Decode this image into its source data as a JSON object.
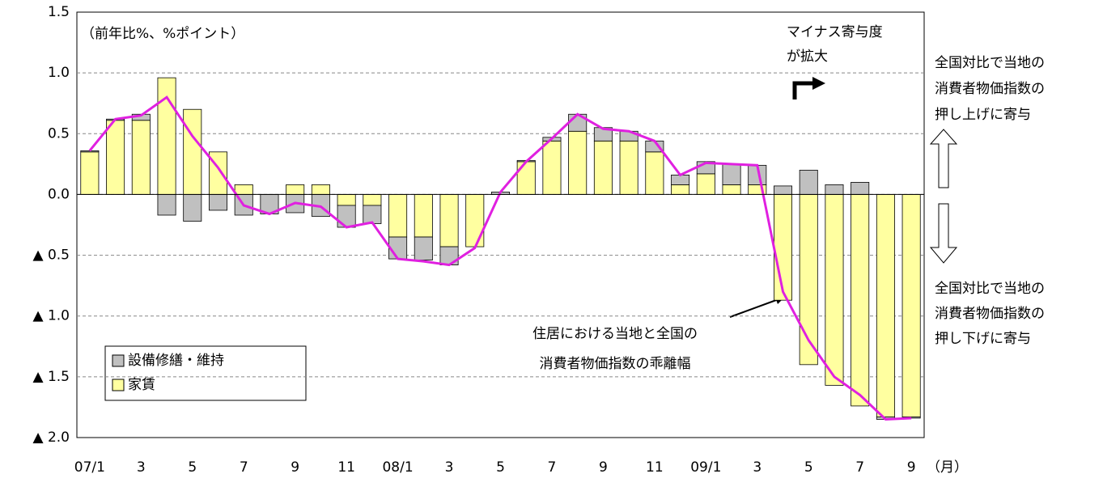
{
  "chart_data": {
    "type": "bar",
    "stacked": true,
    "unit_note": "（前年比%、%ポイント）",
    "x_unit": "（月）",
    "categories": [
      "07/1",
      null,
      "3",
      null,
      "5",
      null,
      "7",
      null,
      "9",
      null,
      "11",
      null,
      "08/1",
      null,
      "3",
      null,
      "5",
      null,
      "7",
      null,
      "9",
      null,
      "11",
      null,
      "09/1",
      null,
      "3",
      null,
      "5",
      null,
      "7",
      null,
      "9"
    ],
    "series": [
      {
        "name": "設備修繕・維持",
        "color": "#c0c0c0",
        "values": [
          0.01,
          0.01,
          0.05,
          -0.17,
          -0.22,
          -0.13,
          -0.17,
          -0.16,
          -0.15,
          -0.18,
          -0.18,
          -0.15,
          -0.18,
          -0.19,
          -0.15,
          0,
          0.02,
          0.01,
          0.03,
          0.14,
          0.11,
          0.08,
          0.09,
          0.08,
          0.1,
          0.17,
          0.16,
          0.07,
          0.2,
          0.08,
          0.1,
          -0.02,
          -0.01
        ]
      },
      {
        "name": "家賃",
        "color": "#ffffa0",
        "values": [
          0.35,
          0.61,
          0.61,
          0.96,
          0.7,
          0.35,
          0.08,
          0,
          0.08,
          0.08,
          -0.09,
          -0.09,
          -0.35,
          -0.35,
          -0.43,
          -0.43,
          0,
          0.27,
          0.44,
          0.52,
          0.44,
          0.44,
          0.35,
          0.08,
          0.17,
          0.08,
          0.08,
          -0.87,
          -1.4,
          -1.57,
          -1.74,
          -1.83,
          -1.83
        ]
      }
    ],
    "line": {
      "type": "line",
      "color": "#e020e0",
      "values": [
        0.36,
        0.62,
        0.65,
        0.8,
        0.48,
        0.22,
        -0.09,
        -0.16,
        -0.07,
        -0.1,
        -0.27,
        -0.23,
        -0.53,
        -0.55,
        -0.58,
        -0.44,
        0.02,
        0.27,
        0.46,
        0.66,
        0.54,
        0.52,
        0.44,
        0.16,
        0.26,
        0.25,
        0.24,
        -0.8,
        -1.2,
        -1.5,
        -1.65,
        -1.85,
        -1.84
      ],
      "label": [
        "住居における当地と全国の",
        "消費者物価指数の乖離幅"
      ]
    },
    "ylim": [
      -2,
      1.5
    ],
    "yticks": [
      {
        "value": -2,
        "label": "▲ 2.0"
      },
      {
        "value": -1.5,
        "label": "▲ 1.5"
      },
      {
        "value": -1,
        "label": "▲ 1.0"
      },
      {
        "value": -0.5,
        "label": "▲ 0.5"
      },
      {
        "value": 0,
        "label": "0.0"
      },
      0.5,
      {
        "value": 1,
        "label": "1.0"
      },
      1.5
    ],
    "grid": true,
    "annotation_top": [
      "マイナス寄与度",
      "が拡大"
    ],
    "annotation_up": [
      "全国対比で当地の",
      "消費者物価指数の",
      "押し上げに寄与"
    ],
    "annotation_down": [
      "全国対比で当地の",
      "消費者物価指数の",
      "押し下げに寄与"
    ]
  }
}
